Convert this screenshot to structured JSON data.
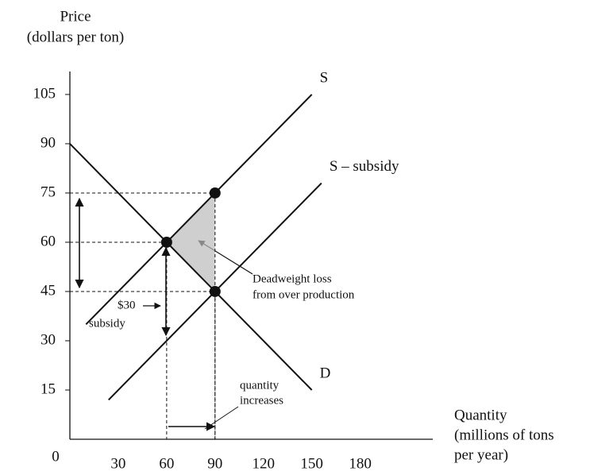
{
  "chart_data": {
    "type": "line",
    "y_label_lines": [
      "Price",
      "(dollars per ton)"
    ],
    "x_label_lines": [
      "Quantity",
      "(millions of tons",
      "per year)"
    ],
    "xlim": [
      0,
      225
    ],
    "ylim": [
      0,
      112
    ],
    "xticks": [
      0,
      30,
      60,
      90,
      120,
      150,
      180
    ],
    "yticks": [
      15,
      30,
      45,
      60,
      75,
      90,
      105
    ],
    "series": [
      {
        "name": "S",
        "color": "#111111",
        "x": [
          10,
          150
        ],
        "values": [
          35,
          105
        ]
      },
      {
        "name": "S – subsidy",
        "color": "#111111",
        "x": [
          24,
          156
        ],
        "values": [
          12,
          78
        ]
      },
      {
        "name": "D",
        "color": "#111111",
        "x": [
          0,
          150
        ],
        "values": [
          90,
          15
        ]
      }
    ],
    "points": {
      "x": [
        60,
        90,
        90
      ],
      "values": [
        60,
        75,
        45
      ]
    },
    "annotations": {
      "deadweight": [
        "Deadweight loss",
        "from over production"
      ],
      "subsidy": [
        "$30",
        "subsidy"
      ],
      "quantity": [
        "quantity",
        "increases"
      ]
    }
  }
}
